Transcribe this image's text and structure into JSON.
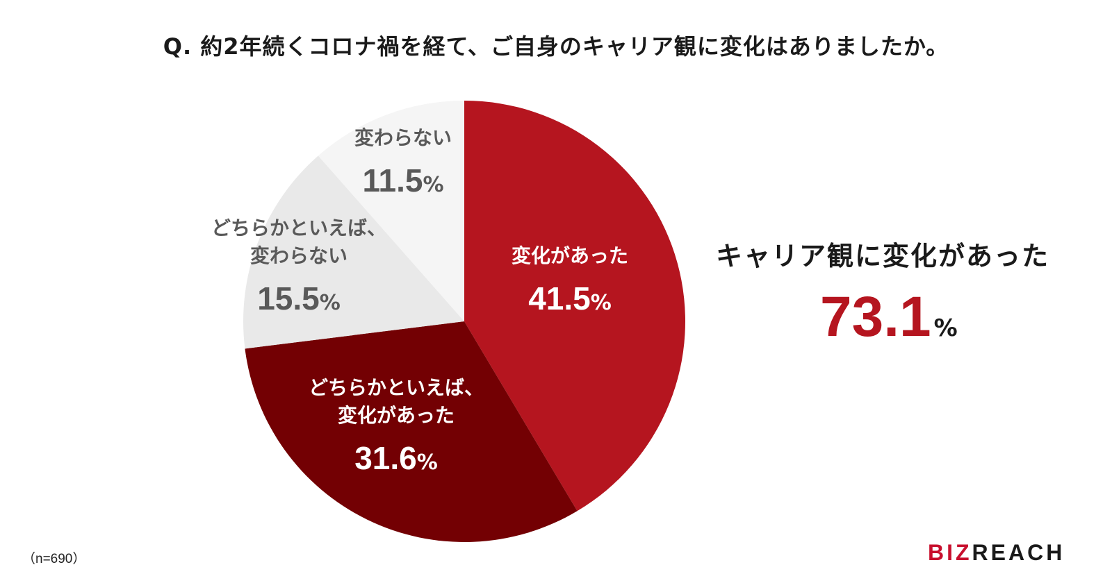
{
  "title": "Q. 約2年続くコロナ禍を経て、ご自身のキャリア観に変化はありましたか。",
  "chart_data": {
    "type": "pie",
    "title": "Q. 約2年続くコロナ禍を経て、ご自身のキャリア観に変化はありましたか。",
    "unit": "%",
    "slices": [
      {
        "label_lines": [
          "変化があった"
        ],
        "value": 41.5,
        "value_text": "41.5",
        "color": "#b5151f",
        "text_color": "#ffffff"
      },
      {
        "label_lines": [
          "どちらかといえば、",
          "変化があった"
        ],
        "value": 31.6,
        "value_text": "31.6",
        "color": "#730003",
        "text_color": "#ffffff"
      },
      {
        "label_lines": [
          "どちらかといえば、",
          "変わらない"
        ],
        "value": 15.5,
        "value_text": "15.5",
        "color": "#e9e9e9",
        "text_color": "#595959"
      },
      {
        "label_lines": [
          "変わらない"
        ],
        "value": 11.5,
        "value_text": "11.5",
        "color": "#f5f5f5",
        "text_color": "#595959"
      }
    ]
  },
  "summary": {
    "label": "キャリア観に変化があった",
    "value": "73.1",
    "unit": "%",
    "accent_color": "#b5151f"
  },
  "sample_size": "（n=690）",
  "brand": {
    "accent": "BIZ",
    "rest": "REACH",
    "accent_color": "#c8102e"
  }
}
